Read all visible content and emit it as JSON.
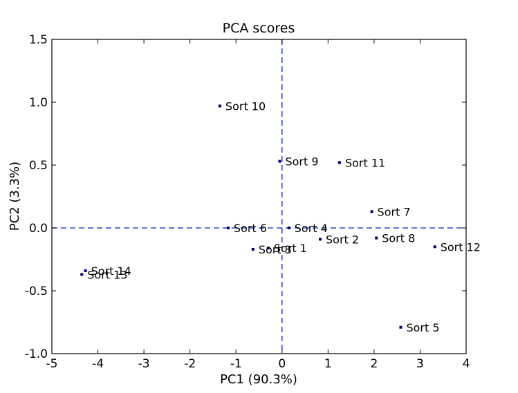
{
  "chart_data": {
    "type": "scatter",
    "title": "PCA scores",
    "xlabel": "PC1 (90.3%)",
    "ylabel": "PC2 (3.3%)",
    "xlim": [
      -5,
      4
    ],
    "ylim": [
      -1.0,
      1.5
    ],
    "xticks": [
      -5,
      -4,
      -3,
      -2,
      -1,
      0,
      1,
      2,
      3,
      4
    ],
    "xtick_labels": [
      "-5",
      "-4",
      "-3",
      "-2",
      "-1",
      "0",
      "1",
      "2",
      "3",
      "4"
    ],
    "yticks": [
      -1.0,
      -0.5,
      0.0,
      0.5,
      1.0,
      1.5
    ],
    "ytick_labels": [
      "-1.0",
      "-0.5",
      "0.0",
      "0.5",
      "1.0",
      "1.5"
    ],
    "grid": false,
    "reference_lines": {
      "x": 0,
      "y": 0,
      "style": "dashed",
      "color": "#3344cc"
    },
    "marker_color": "#00007a",
    "points": [
      {
        "label": "Sort 1",
        "x": -0.3,
        "y": -0.16
      },
      {
        "label": "Sort 2",
        "x": 0.83,
        "y": -0.09
      },
      {
        "label": "Sort 3",
        "x": -0.63,
        "y": -0.17
      },
      {
        "label": "Sort 4",
        "x": 0.15,
        "y": 0.0
      },
      {
        "label": "Sort 5",
        "x": 2.58,
        "y": -0.79
      },
      {
        "label": "Sort 6",
        "x": -1.17,
        "y": 0.0
      },
      {
        "label": "Sort 7",
        "x": 1.95,
        "y": 0.13
      },
      {
        "label": "Sort 8",
        "x": 2.05,
        "y": -0.08
      },
      {
        "label": "Sort 9",
        "x": -0.05,
        "y": 0.53
      },
      {
        "label": "Sort 10",
        "x": -1.35,
        "y": 0.97
      },
      {
        "label": "Sort 11",
        "x": 1.25,
        "y": 0.52
      },
      {
        "label": "Sort 12",
        "x": 3.32,
        "y": -0.15
      },
      {
        "label": "Sort 13",
        "x": -4.35,
        "y": -0.37
      },
      {
        "label": "Sort 14",
        "x": -4.27,
        "y": -0.34
      }
    ]
  }
}
